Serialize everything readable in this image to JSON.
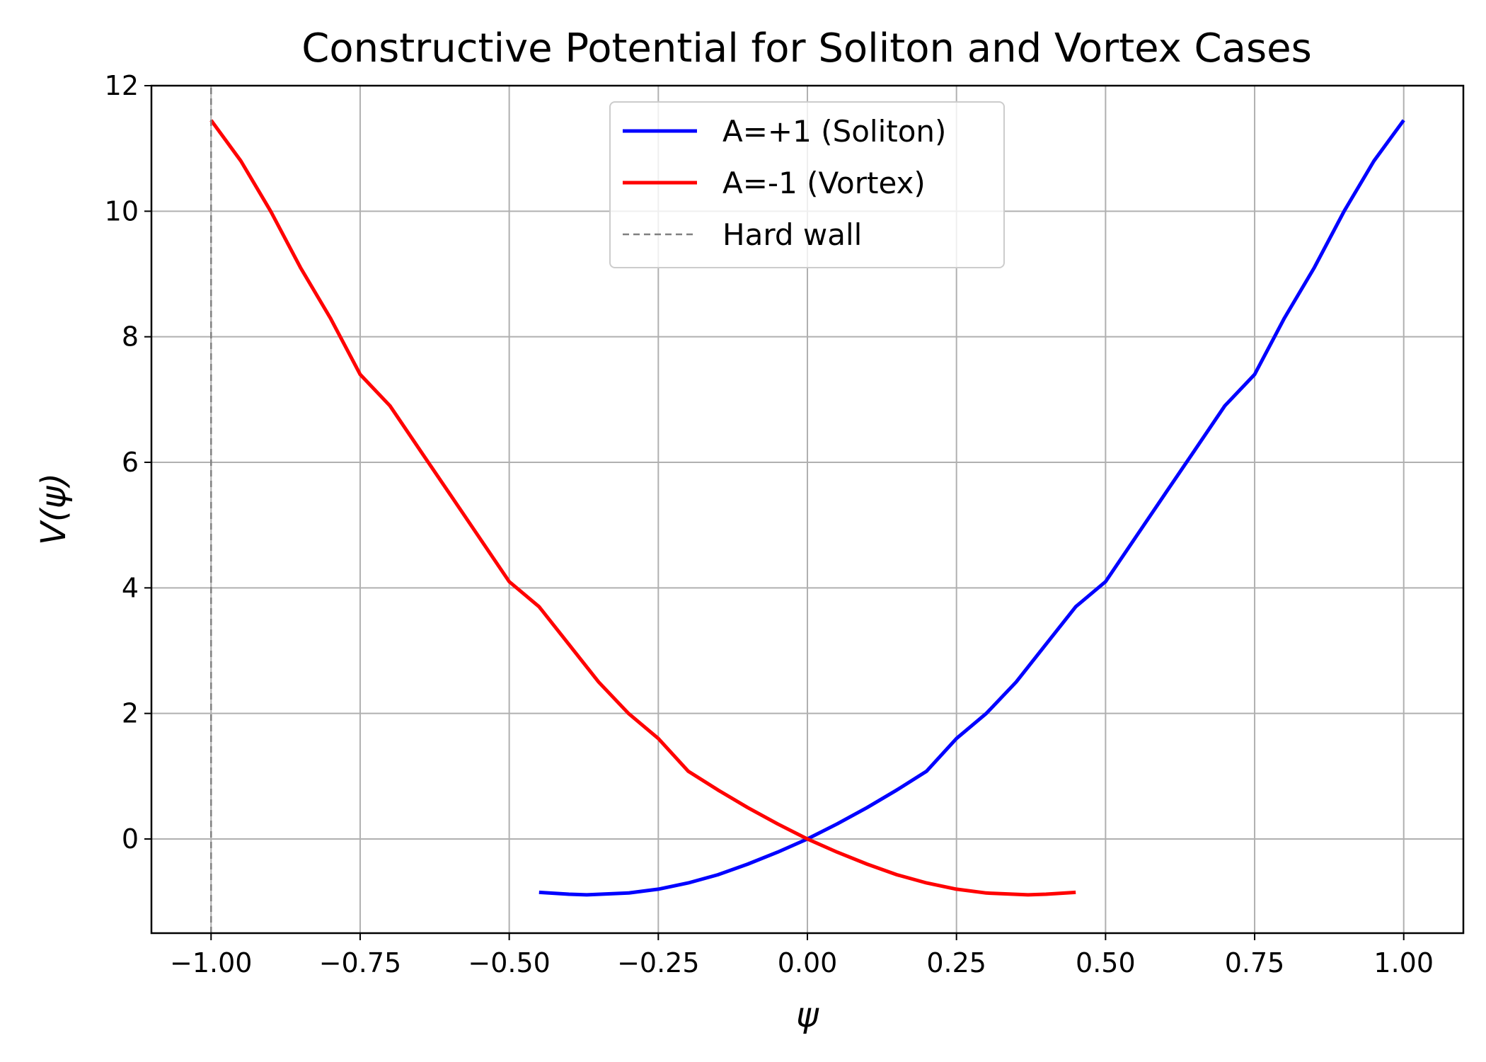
{
  "chart_data": {
    "type": "line",
    "title": "Constructive Potential for Soliton and Vortex Cases",
    "xlabel": "ψ",
    "ylabel": "V(ψ)",
    "xlim": [
      -1.1,
      1.1
    ],
    "ylim": [
      -1.5,
      12
    ],
    "x_ticks": [
      -1.0,
      -0.75,
      -0.5,
      -0.25,
      0.0,
      0.25,
      0.5,
      0.75,
      1.0
    ],
    "x_tick_labels": [
      "−1.00",
      "−0.75",
      "−0.50",
      "−0.25",
      "0.00",
      "0.25",
      "0.50",
      "0.75",
      "1.00"
    ],
    "y_ticks": [
      0,
      2,
      4,
      6,
      8,
      10,
      12
    ],
    "y_tick_labels": [
      "0",
      "2",
      "4",
      "6",
      "8",
      "10",
      "12"
    ],
    "grid": true,
    "legend_position": "top-center",
    "series": [
      {
        "name": "A=+1 (Soliton)",
        "color": "#0000ff",
        "style": "solid",
        "x": [
          -0.45,
          -0.4,
          -0.37,
          -0.3,
          -0.25,
          -0.2,
          -0.15,
          -0.1,
          -0.05,
          0.0,
          0.05,
          0.1,
          0.15,
          0.2,
          0.25,
          0.3,
          0.35,
          0.4,
          0.45,
          0.5,
          0.55,
          0.6,
          0.65,
          0.7,
          0.75,
          0.8,
          0.85,
          0.9,
          0.95,
          1.0
        ],
        "y": [
          -0.85,
          -0.88,
          -0.89,
          -0.86,
          -0.8,
          -0.7,
          -0.57,
          -0.4,
          -0.21,
          0.0,
          0.24,
          0.5,
          0.78,
          1.08,
          1.6,
          2.0,
          2.5,
          3.1,
          3.7,
          4.1,
          4.8,
          5.5,
          6.2,
          6.9,
          7.4,
          8.3,
          9.1,
          10.0,
          10.8,
          11.45
        ]
      },
      {
        "name": "A=-1 (Vortex)",
        "color": "#ff0000",
        "style": "solid",
        "x": [
          -1.0,
          -0.95,
          -0.9,
          -0.85,
          -0.8,
          -0.75,
          -0.7,
          -0.65,
          -0.6,
          -0.55,
          -0.5,
          -0.45,
          -0.4,
          -0.35,
          -0.3,
          -0.25,
          -0.2,
          -0.15,
          -0.1,
          -0.05,
          0.0,
          0.05,
          0.1,
          0.15,
          0.2,
          0.25,
          0.3,
          0.37,
          0.4,
          0.45
        ],
        "y": [
          11.45,
          10.8,
          10.0,
          9.1,
          8.3,
          7.4,
          6.9,
          6.2,
          5.5,
          4.8,
          4.1,
          3.7,
          3.1,
          2.5,
          2.0,
          1.6,
          1.08,
          0.78,
          0.5,
          0.24,
          0.0,
          -0.21,
          -0.4,
          -0.57,
          -0.7,
          -0.8,
          -0.86,
          -0.89,
          -0.88,
          -0.85
        ]
      },
      {
        "name": "Hard wall",
        "color": "#808080",
        "style": "dashed",
        "x": [
          -1.0,
          -1.0
        ],
        "y": [
          -1.5,
          12
        ]
      }
    ]
  }
}
